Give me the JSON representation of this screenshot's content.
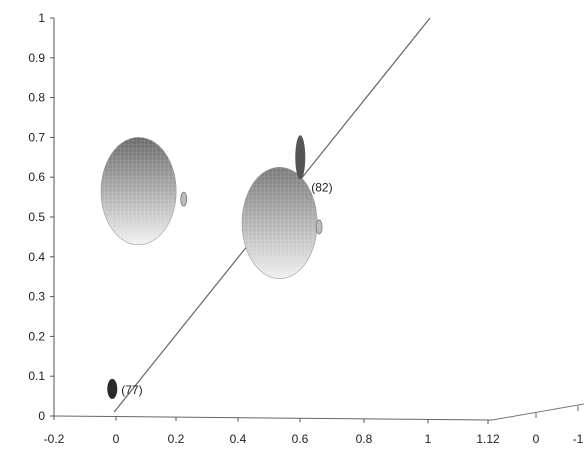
{
  "chart_data": {
    "type": "scatter",
    "title": "",
    "xlabel": "",
    "ylabel": "",
    "xlim": [
      -0.2,
      1.12
    ],
    "ylim": [
      0,
      1
    ],
    "x_ticks": [
      "-0.2",
      "0",
      "0.2",
      "0.4",
      "0.6",
      "0.8",
      "1",
      "1.12"
    ],
    "y_ticks": [
      "0",
      "0.1",
      "0.2",
      "0.3",
      "0.4",
      "0.5",
      "0.6",
      "0.7",
      "0.8",
      "0.9",
      "1"
    ],
    "depth_ticks": [
      "0",
      "-1"
    ],
    "fit_line": {
      "x": [
        0.16,
        1.0
      ],
      "y": [
        0.01,
        1.0
      ],
      "color": "#666666"
    },
    "spheres": [
      {
        "x": 0.225,
        "y": 0.565,
        "rx": 0.1,
        "ry": 0.135,
        "color_top": "#6a6a6a",
        "color_bottom": "#f2f2f2"
      },
      {
        "x": 0.6,
        "y": 0.485,
        "rx": 0.1,
        "ry": 0.14,
        "color_top": "#7a7a7a",
        "color_bottom": "#f0f0f0"
      }
    ],
    "points": [
      {
        "label": "(77)",
        "x": 0.155,
        "y": 0.068,
        "color": "#2a2a2a"
      },
      {
        "label": "(82)",
        "x": 0.655,
        "y": 0.65,
        "color": "#555555"
      }
    ],
    "side_marks": [
      {
        "x": 0.345,
        "y": 0.545
      },
      {
        "x": 0.705,
        "y": 0.475
      }
    ]
  }
}
